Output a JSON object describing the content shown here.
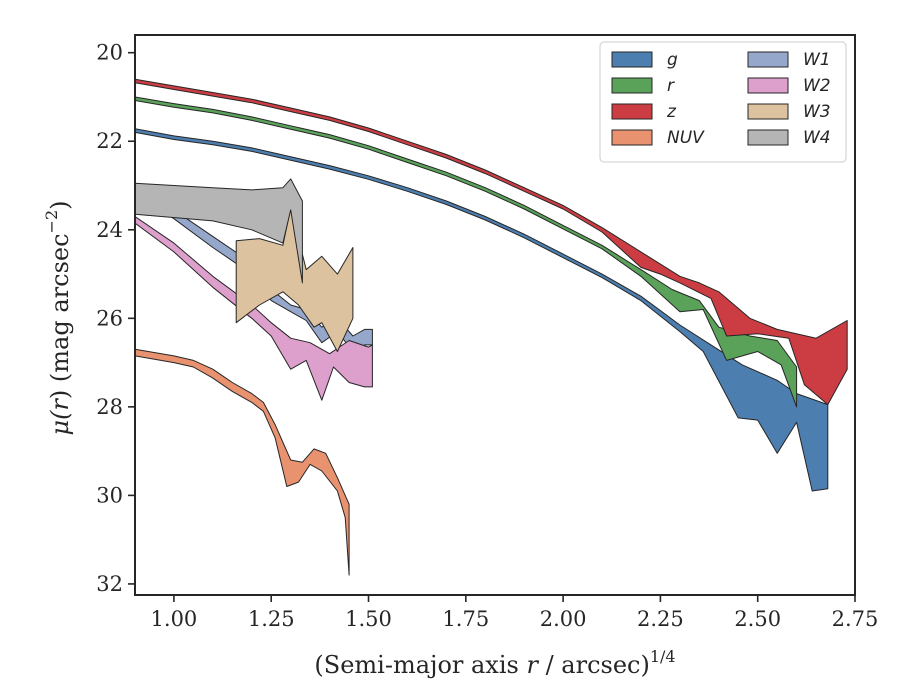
{
  "chart_data": {
    "type": "area",
    "chart_kind": "surface brightness profile bands",
    "xlabel_main": "(Semi-major axis ",
    "xlabel_var": "r",
    "xlabel_rest": " / arcsec)",
    "xlabel_exp": "1/4",
    "ylabel_mu": "μ(",
    "ylabel_var": "r",
    "ylabel_rest": ") (mag arcsec",
    "ylabel_exp": "−2",
    "ylabel_close": ")",
    "xlim": [
      0.9,
      2.75
    ],
    "ylim": [
      32.25,
      19.6
    ],
    "y_inverted": true,
    "xticks": [
      1.0,
      1.25,
      1.5,
      1.75,
      2.0,
      2.25,
      2.5,
      2.75
    ],
    "xtick_labels": [
      "1.00",
      "1.25",
      "1.50",
      "1.75",
      "2.00",
      "2.25",
      "2.50",
      "2.75"
    ],
    "yticks": [
      20,
      22,
      24,
      26,
      28,
      30,
      32
    ],
    "ytick_labels": [
      "20",
      "22",
      "24",
      "26",
      "28",
      "30",
      "32"
    ],
    "grid": false,
    "legend_position": "top-right",
    "legend_columns": 2,
    "series": [
      {
        "name": "g",
        "color": "#4c7eb0",
        "upper": [
          [
            0.9,
            21.72
          ],
          [
            1.0,
            21.88
          ],
          [
            1.1,
            22.0
          ],
          [
            1.2,
            22.15
          ],
          [
            1.3,
            22.35
          ],
          [
            1.4,
            22.55
          ],
          [
            1.5,
            22.78
          ],
          [
            1.6,
            23.05
          ],
          [
            1.7,
            23.35
          ],
          [
            1.8,
            23.7
          ],
          [
            1.9,
            24.1
          ],
          [
            2.0,
            24.55
          ],
          [
            2.1,
            25.0
          ],
          [
            2.2,
            25.5
          ],
          [
            2.3,
            26.15
          ],
          [
            2.38,
            26.6
          ],
          [
            2.46,
            27.05
          ],
          [
            2.55,
            27.4
          ],
          [
            2.6,
            27.7
          ],
          [
            2.68,
            27.95
          ]
        ],
        "lower": [
          [
            0.9,
            21.8
          ],
          [
            1.0,
            21.96
          ],
          [
            1.1,
            22.08
          ],
          [
            1.2,
            22.23
          ],
          [
            1.3,
            22.43
          ],
          [
            1.4,
            22.63
          ],
          [
            1.5,
            22.86
          ],
          [
            1.6,
            23.13
          ],
          [
            1.7,
            23.43
          ],
          [
            1.8,
            23.78
          ],
          [
            1.9,
            24.18
          ],
          [
            2.0,
            24.63
          ],
          [
            2.1,
            25.08
          ],
          [
            2.2,
            25.6
          ],
          [
            2.3,
            26.3
          ],
          [
            2.36,
            26.75
          ],
          [
            2.45,
            28.25
          ],
          [
            2.5,
            28.3
          ],
          [
            2.55,
            29.05
          ],
          [
            2.6,
            28.35
          ],
          [
            2.64,
            29.9
          ],
          [
            2.68,
            29.85
          ]
        ]
      },
      {
        "name": "r",
        "color": "#5aa15a",
        "upper": [
          [
            0.9,
            21.0
          ],
          [
            1.0,
            21.15
          ],
          [
            1.1,
            21.28
          ],
          [
            1.2,
            21.45
          ],
          [
            1.3,
            21.65
          ],
          [
            1.4,
            21.85
          ],
          [
            1.5,
            22.1
          ],
          [
            1.6,
            22.4
          ],
          [
            1.7,
            22.7
          ],
          [
            1.8,
            23.05
          ],
          [
            1.9,
            23.45
          ],
          [
            2.0,
            23.9
          ],
          [
            2.1,
            24.35
          ],
          [
            2.2,
            24.9
          ],
          [
            2.28,
            25.35
          ],
          [
            2.35,
            25.6
          ],
          [
            2.4,
            26.2
          ],
          [
            2.48,
            26.4
          ],
          [
            2.55,
            26.5
          ],
          [
            2.6,
            27.1
          ]
        ],
        "lower": [
          [
            0.9,
            21.08
          ],
          [
            1.0,
            21.23
          ],
          [
            1.1,
            21.36
          ],
          [
            1.2,
            21.53
          ],
          [
            1.3,
            21.73
          ],
          [
            1.4,
            21.93
          ],
          [
            1.5,
            22.18
          ],
          [
            1.6,
            22.48
          ],
          [
            1.7,
            22.78
          ],
          [
            1.8,
            23.13
          ],
          [
            1.9,
            23.53
          ],
          [
            2.0,
            23.98
          ],
          [
            2.1,
            24.43
          ],
          [
            2.2,
            25.05
          ],
          [
            2.3,
            25.85
          ],
          [
            2.36,
            25.8
          ],
          [
            2.42,
            26.95
          ],
          [
            2.5,
            26.75
          ],
          [
            2.56,
            27.05
          ],
          [
            2.6,
            28.0
          ]
        ]
      },
      {
        "name": "z",
        "color": "#cc3d43",
        "upper": [
          [
            0.9,
            20.6
          ],
          [
            1.0,
            20.75
          ],
          [
            1.1,
            20.9
          ],
          [
            1.2,
            21.05
          ],
          [
            1.3,
            21.25
          ],
          [
            1.4,
            21.45
          ],
          [
            1.5,
            21.7
          ],
          [
            1.6,
            22.0
          ],
          [
            1.7,
            22.3
          ],
          [
            1.8,
            22.65
          ],
          [
            1.9,
            23.05
          ],
          [
            2.0,
            23.45
          ],
          [
            2.1,
            23.95
          ],
          [
            2.2,
            24.5
          ],
          [
            2.3,
            25.05
          ],
          [
            2.35,
            25.2
          ],
          [
            2.4,
            25.4
          ],
          [
            2.48,
            26.0
          ],
          [
            2.55,
            26.25
          ],
          [
            2.65,
            26.45
          ],
          [
            2.73,
            26.05
          ]
        ],
        "lower": [
          [
            0.9,
            20.68
          ],
          [
            1.0,
            20.83
          ],
          [
            1.1,
            20.98
          ],
          [
            1.2,
            21.13
          ],
          [
            1.3,
            21.33
          ],
          [
            1.4,
            21.53
          ],
          [
            1.5,
            21.78
          ],
          [
            1.6,
            22.08
          ],
          [
            1.7,
            22.38
          ],
          [
            1.8,
            22.73
          ],
          [
            1.9,
            23.13
          ],
          [
            2.0,
            23.53
          ],
          [
            2.1,
            24.05
          ],
          [
            2.2,
            24.85
          ],
          [
            2.25,
            25.0
          ],
          [
            2.3,
            25.2
          ],
          [
            2.38,
            25.55
          ],
          [
            2.42,
            26.4
          ],
          [
            2.5,
            26.35
          ],
          [
            2.58,
            26.45
          ],
          [
            2.62,
            27.5
          ],
          [
            2.68,
            27.95
          ],
          [
            2.73,
            27.15
          ]
        ]
      },
      {
        "name": "NUV",
        "color": "#e8926f",
        "upper": [
          [
            0.9,
            26.7
          ],
          [
            1.0,
            26.85
          ],
          [
            1.05,
            26.95
          ],
          [
            1.1,
            27.15
          ],
          [
            1.15,
            27.45
          ],
          [
            1.2,
            27.7
          ],
          [
            1.23,
            27.9
          ],
          [
            1.26,
            28.4
          ],
          [
            1.3,
            29.2
          ],
          [
            1.33,
            29.25
          ],
          [
            1.36,
            28.95
          ],
          [
            1.39,
            29.05
          ],
          [
            1.42,
            29.6
          ],
          [
            1.45,
            30.2
          ]
        ],
        "lower": [
          [
            0.9,
            26.85
          ],
          [
            1.0,
            27.0
          ],
          [
            1.05,
            27.1
          ],
          [
            1.1,
            27.35
          ],
          [
            1.15,
            27.65
          ],
          [
            1.2,
            27.9
          ],
          [
            1.23,
            28.1
          ],
          [
            1.26,
            28.7
          ],
          [
            1.29,
            29.8
          ],
          [
            1.32,
            29.7
          ],
          [
            1.35,
            29.3
          ],
          [
            1.38,
            29.45
          ],
          [
            1.42,
            29.9
          ],
          [
            1.44,
            30.5
          ],
          [
            1.45,
            31.8
          ]
        ]
      },
      {
        "name": "W1",
        "color": "#95a8cb",
        "upper": [
          [
            0.9,
            23.05
          ],
          [
            1.0,
            23.55
          ],
          [
            1.1,
            24.15
          ],
          [
            1.2,
            24.75
          ],
          [
            1.25,
            25.35
          ],
          [
            1.3,
            25.7
          ],
          [
            1.34,
            25.8
          ],
          [
            1.38,
            26.2
          ],
          [
            1.42,
            26.0
          ],
          [
            1.46,
            26.4
          ],
          [
            1.49,
            26.25
          ],
          [
            1.51,
            26.25
          ]
        ],
        "lower": [
          [
            0.9,
            23.2
          ],
          [
            1.0,
            23.75
          ],
          [
            1.1,
            24.4
          ],
          [
            1.2,
            25.0
          ],
          [
            1.25,
            25.6
          ],
          [
            1.3,
            25.85
          ],
          [
            1.34,
            26.05
          ],
          [
            1.38,
            26.55
          ],
          [
            1.42,
            26.3
          ],
          [
            1.46,
            26.75
          ],
          [
            1.49,
            26.6
          ],
          [
            1.51,
            26.6
          ]
        ]
      },
      {
        "name": "W2",
        "color": "#dd9fcb",
        "upper": [
          [
            0.9,
            23.7
          ],
          [
            1.0,
            24.3
          ],
          [
            1.1,
            25.05
          ],
          [
            1.2,
            25.7
          ],
          [
            1.25,
            26.1
          ],
          [
            1.3,
            26.45
          ],
          [
            1.35,
            26.55
          ],
          [
            1.4,
            26.8
          ],
          [
            1.45,
            26.5
          ],
          [
            1.5,
            26.65
          ],
          [
            1.51,
            26.6
          ]
        ],
        "lower": [
          [
            0.9,
            23.85
          ],
          [
            1.0,
            24.5
          ],
          [
            1.1,
            25.3
          ],
          [
            1.2,
            26.0
          ],
          [
            1.25,
            26.4
          ],
          [
            1.3,
            27.15
          ],
          [
            1.34,
            26.95
          ],
          [
            1.38,
            27.85
          ],
          [
            1.41,
            27.1
          ],
          [
            1.45,
            27.45
          ],
          [
            1.49,
            27.55
          ],
          [
            1.51,
            27.55
          ]
        ]
      },
      {
        "name": "W3",
        "color": "#dcc29f",
        "upper": [
          [
            1.16,
            24.25
          ],
          [
            1.22,
            24.2
          ],
          [
            1.28,
            24.35
          ],
          [
            1.3,
            23.5
          ],
          [
            1.34,
            24.9
          ],
          [
            1.38,
            24.6
          ],
          [
            1.42,
            25.0
          ],
          [
            1.46,
            24.4
          ]
        ],
        "lower": [
          [
            1.16,
            26.1
          ],
          [
            1.22,
            25.7
          ],
          [
            1.28,
            25.4
          ],
          [
            1.32,
            25.7
          ],
          [
            1.36,
            26.2
          ],
          [
            1.38,
            26.1
          ],
          [
            1.42,
            26.75
          ],
          [
            1.46,
            26.0
          ]
        ]
      },
      {
        "name": "W4",
        "color": "#b5b5b5",
        "upper": [
          [
            0.9,
            22.95
          ],
          [
            1.1,
            23.05
          ],
          [
            1.2,
            23.1
          ],
          [
            1.28,
            23.05
          ],
          [
            1.3,
            22.85
          ],
          [
            1.33,
            23.35
          ]
        ],
        "lower": [
          [
            0.9,
            23.65
          ],
          [
            1.1,
            23.8
          ],
          [
            1.2,
            24.0
          ],
          [
            1.28,
            24.3
          ],
          [
            1.3,
            23.55
          ],
          [
            1.33,
            25.2
          ]
        ]
      }
    ]
  }
}
